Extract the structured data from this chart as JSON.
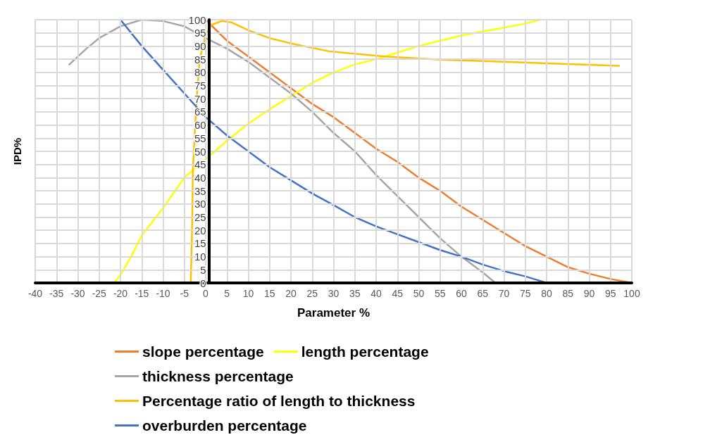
{
  "chart_data": {
    "type": "line",
    "xlabel": "Parameter %",
    "ylabel": "IPD%",
    "xlim": [
      -40,
      100
    ],
    "xticks": [
      -40,
      -35,
      -30,
      -25,
      -20,
      -15,
      -10,
      -5,
      0,
      5,
      10,
      15,
      20,
      25,
      30,
      35,
      40,
      45,
      50,
      55,
      60,
      65,
      70,
      75,
      80,
      85,
      90,
      95,
      100
    ],
    "ylim": [
      0,
      100
    ],
    "yticks": [
      0,
      5,
      10,
      15,
      20,
      25,
      30,
      35,
      40,
      45,
      50,
      55,
      60,
      65,
      70,
      75,
      80,
      85,
      90,
      95,
      100
    ],
    "grid": true,
    "legend": "bottom",
    "marker": "none",
    "line_style": "solid",
    "series": [
      {
        "name": "slope percentage",
        "color": "#ed7d31",
        "x": [
          0,
          5,
          10,
          15,
          20,
          25,
          30,
          35,
          40,
          45,
          50,
          55,
          60,
          65,
          70,
          75,
          80,
          85,
          90,
          95,
          100
        ],
        "values": [
          100,
          92,
          86,
          80,
          74,
          68,
          63,
          57,
          51,
          46,
          40,
          35,
          29,
          24,
          19,
          14,
          10,
          6,
          3.5,
          1.5,
          0
        ]
      },
      {
        "name": "length percentage",
        "color": "#ffff00",
        "x": [
          -21.5,
          -20,
          -17.5,
          -15,
          -10,
          -5,
          0,
          5,
          10,
          15,
          20,
          25,
          30,
          35,
          40,
          45,
          50,
          55,
          60,
          65,
          70,
          75,
          78.5
        ],
        "values": [
          0,
          3,
          10,
          18,
          28.5,
          40,
          47,
          54,
          60.5,
          66,
          71,
          76,
          80,
          83,
          85,
          87.5,
          90,
          92,
          94,
          95.5,
          97,
          98.5,
          100
        ]
      },
      {
        "name": "thickness percentage",
        "color": "#a5a5a5",
        "x": [
          -32,
          -28,
          -25,
          -20,
          -15,
          -10,
          -5,
          0,
          5,
          10,
          15,
          20,
          25,
          30,
          35,
          40,
          45,
          50,
          55,
          60,
          65,
          68
        ],
        "values": [
          83,
          89,
          93,
          97.5,
          100,
          99.5,
          97.5,
          93,
          89,
          84,
          78,
          72,
          65,
          57,
          50,
          41,
          33,
          25,
          17,
          10,
          4,
          0
        ]
      },
      {
        "name": "Percentage ratio of length to thickness",
        "color": "#ffc000",
        "x": [
          -3.5,
          -3.2,
          -3,
          -2.2,
          -1.4,
          0,
          1.3,
          3.8,
          6,
          10,
          15,
          20,
          29,
          42,
          55,
          70,
          97
        ],
        "values": [
          0,
          20,
          43,
          68,
          85,
          94,
          98,
          99.5,
          99,
          96,
          93,
          91,
          88,
          86,
          84.8,
          84,
          82.5
        ]
      },
      {
        "name": "overburden percentage",
        "color": "#4472c4",
        "x": [
          -20,
          -15,
          -10,
          -5,
          0,
          5,
          10,
          15,
          20,
          25,
          30,
          35,
          40,
          45,
          50,
          55,
          60,
          65,
          70,
          75,
          80
        ],
        "values": [
          100,
          90,
          81,
          72,
          63,
          56,
          50,
          44,
          39,
          34,
          29.6,
          25,
          21.5,
          18.5,
          15.5,
          12.5,
          10,
          7,
          4.5,
          2.5,
          0
        ]
      }
    ]
  }
}
